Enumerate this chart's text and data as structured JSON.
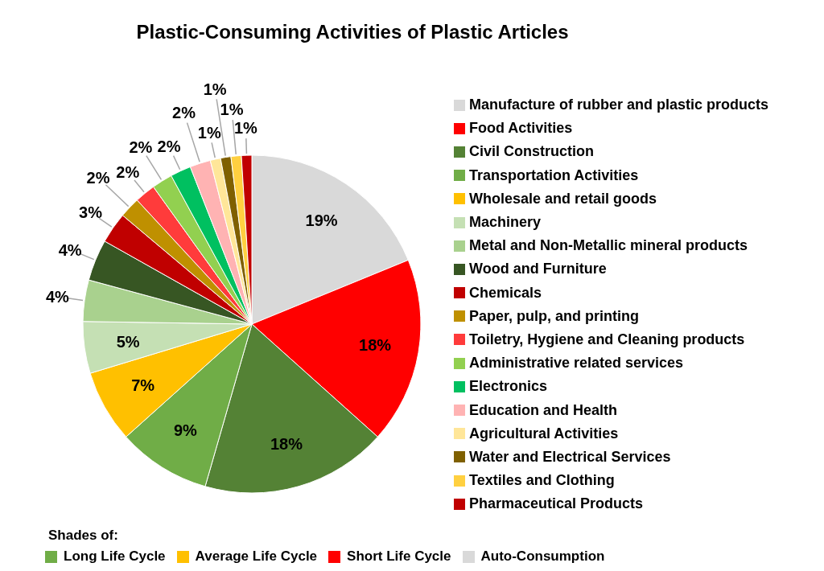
{
  "chart_data": {
    "type": "pie",
    "title": "Plastic-Consuming Activities of Plastic Articles",
    "categories": [
      "Manufacture of rubber and plastic products",
      "Food Activities",
      "Civil Construction",
      "Transportation Activities",
      "Wholesale and retail goods",
      "Machinery",
      "Metal and Non-Metallic mineral products",
      "Wood and Furniture",
      "Chemicals",
      "Paper, pulp, and printing",
      "Toiletry, Hygiene and Cleaning products",
      "Administrative related services",
      "Electronics",
      "Education and Health",
      "Agricultural Activities",
      "Water and Electrical Services",
      "Textiles and Clothing",
      "Pharmaceutical Products"
    ],
    "values": [
      19,
      18,
      18,
      9,
      7,
      5,
      4,
      4,
      3,
      2,
      2,
      2,
      2,
      2,
      1,
      1,
      1,
      1
    ],
    "value_labels": [
      "19%",
      "18%",
      "18%",
      "9%",
      "7%",
      "5%",
      "4%",
      "4%",
      "3%",
      "2%",
      "2%",
      "2%",
      "2%",
      "2%",
      "1%",
      "1%",
      "1%",
      "1%"
    ],
    "colors": [
      "#d9d9d9",
      "#ff0000",
      "#548235",
      "#70ad47",
      "#ffc000",
      "#c5e0b4",
      "#a9d18e",
      "#375623",
      "#c00000",
      "#bf9000",
      "#ff3b3b",
      "#92d050",
      "#00c060",
      "#ffb3b3",
      "#ffe699",
      "#7f6000",
      "#ffd040",
      "#c00000"
    ],
    "legend": "right",
    "annotations": [
      "Shades of:",
      "Long Life Cycle",
      "Average Life Cycle",
      "Short Life Cycle",
      "Auto-Consumption"
    ]
  }
}
